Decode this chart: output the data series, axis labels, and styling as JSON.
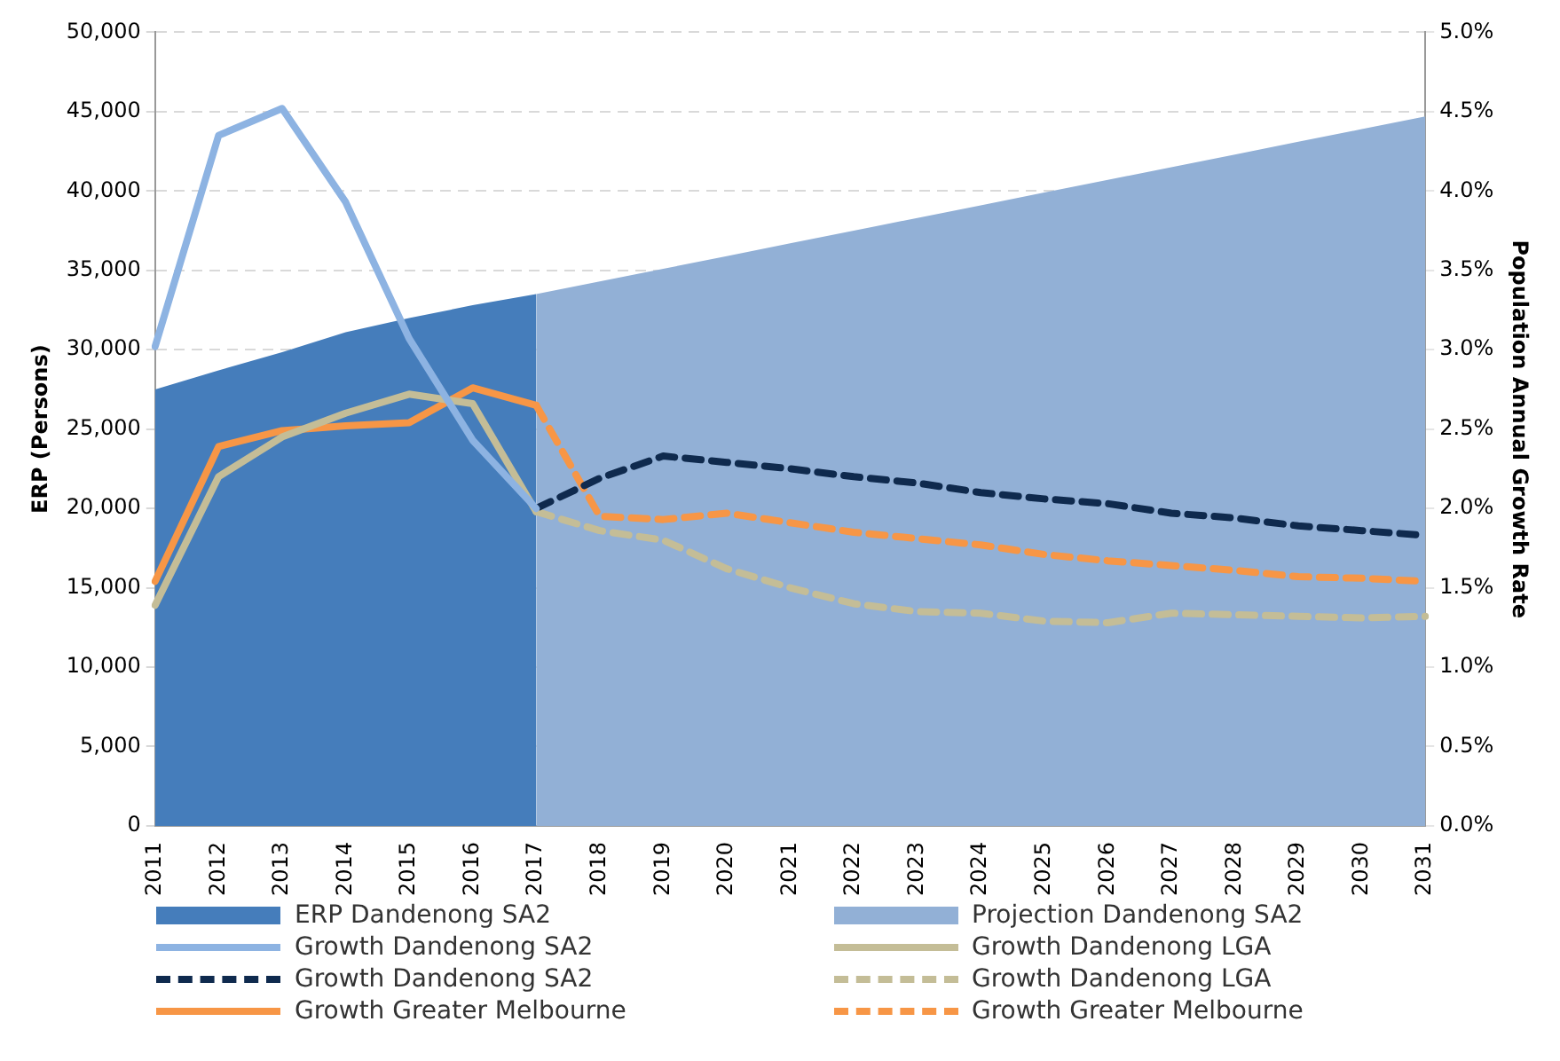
{
  "chart_data": {
    "type": "area",
    "ylabel": "ERP (Persons)",
    "y2label": "Population Annual Growth Rate",
    "categories": [
      "2011",
      "2012",
      "2013",
      "2014",
      "2015",
      "2016",
      "2017",
      "2018",
      "2019",
      "2020",
      "2021",
      "2022",
      "2023",
      "2024",
      "2025",
      "2026",
      "2027",
      "2028",
      "2029",
      "2030",
      "2031"
    ],
    "ylim": [
      0,
      50000
    ],
    "yticks": [
      {
        "value": 0,
        "label": "0"
      },
      {
        "value": 5000,
        "label": "5,000"
      },
      {
        "value": 10000,
        "label": "10,000"
      },
      {
        "value": 15000,
        "label": "15,000"
      },
      {
        "value": 20000,
        "label": "20,000"
      },
      {
        "value": 25000,
        "label": "25,000"
      },
      {
        "value": 30000,
        "label": "30,000"
      },
      {
        "value": 35000,
        "label": "35,000"
      },
      {
        "value": 40000,
        "label": "40,000"
      },
      {
        "value": 45000,
        "label": "45,000"
      },
      {
        "value": 50000,
        "label": "50,000"
      }
    ],
    "y2lim": [
      0,
      5
    ],
    "y2ticks": [
      {
        "value": 0,
        "label": "0.0%"
      },
      {
        "value": 0.5,
        "label": "0.5%"
      },
      {
        "value": 1,
        "label": "1.0%"
      },
      {
        "value": 1.5,
        "label": "1.5%"
      },
      {
        "value": 2,
        "label": "2.0%"
      },
      {
        "value": 2.5,
        "label": "2.5%"
      },
      {
        "value": 3,
        "label": "3.0%"
      },
      {
        "value": 3.5,
        "label": "3.5%"
      },
      {
        "value": 4,
        "label": "4.0%"
      },
      {
        "value": 4.5,
        "label": "4.5%"
      },
      {
        "value": 5,
        "label": "5.0%"
      }
    ],
    "grid": "y",
    "legend": "bottom",
    "series": [
      {
        "name": "ERP Dandenong SA2",
        "type": "area",
        "color": "#457dbb",
        "values": [
          27500,
          28700,
          29850,
          31100,
          32000,
          32800,
          33500,
          null,
          null,
          null,
          null,
          null,
          null,
          null,
          null,
          null,
          null,
          null,
          null,
          null,
          null
        ]
      },
      {
        "name": "Projection Dandenong SA2",
        "type": "area",
        "color": "#92b0d6",
        "values": [
          null,
          null,
          null,
          null,
          null,
          null,
          33500,
          34300,
          35100,
          35900,
          36700,
          37500,
          38300,
          39100,
          39900,
          40700,
          41500,
          42300,
          43100,
          43900,
          44700
        ]
      },
      {
        "name": "Growth Dandenong SA2",
        "type": "line",
        "axis": "y2",
        "line_style": "solid",
        "color": "#8db3e2",
        "values": [
          3.02,
          4.35,
          4.52,
          3.93,
          3.07,
          2.43,
          2.0,
          null,
          null,
          null,
          null,
          null,
          null,
          null,
          null,
          null,
          null,
          null,
          null,
          null,
          null
        ]
      },
      {
        "name": "Growth Dandenong LGA",
        "type": "line",
        "axis": "y2",
        "line_style": "solid",
        "color": "#c4bd97",
        "values": [
          1.39,
          2.2,
          2.45,
          2.6,
          2.72,
          2.66,
          1.98,
          null,
          null,
          null,
          null,
          null,
          null,
          null,
          null,
          null,
          null,
          null,
          null,
          null,
          null
        ]
      },
      {
        "name": "Growth Dandenong SA2",
        "type": "line",
        "axis": "y2",
        "line_style": "dashed",
        "color": "#0f2a4e",
        "values": [
          null,
          null,
          null,
          null,
          null,
          null,
          2.0,
          2.19,
          2.33,
          2.29,
          2.25,
          2.2,
          2.16,
          2.1,
          2.06,
          2.03,
          1.97,
          1.94,
          1.89,
          1.86,
          1.83
        ]
      },
      {
        "name": "Growth Dandenong LGA",
        "type": "line",
        "axis": "y2",
        "line_style": "dashed",
        "color": "#c4bd97",
        "values": [
          null,
          null,
          null,
          null,
          null,
          null,
          1.98,
          1.86,
          1.8,
          1.62,
          1.5,
          1.4,
          1.35,
          1.34,
          1.29,
          1.28,
          1.34,
          1.33,
          1.32,
          1.31,
          1.32
        ]
      },
      {
        "name": "Growth Greater Melbourne",
        "type": "line",
        "axis": "y2",
        "line_style": "solid",
        "color": "#f79646",
        "values": [
          1.54,
          2.39,
          2.49,
          2.52,
          2.54,
          2.76,
          2.65,
          null,
          null,
          null,
          null,
          null,
          null,
          null,
          null,
          null,
          null,
          null,
          null,
          null,
          null
        ]
      },
      {
        "name": "Growth Greater Melbourne",
        "type": "line",
        "axis": "y2",
        "line_style": "dashed",
        "color": "#f79646",
        "values": [
          null,
          null,
          null,
          null,
          null,
          null,
          2.65,
          1.95,
          1.93,
          1.97,
          1.91,
          1.85,
          1.81,
          1.77,
          1.71,
          1.67,
          1.64,
          1.61,
          1.57,
          1.56,
          1.54
        ]
      }
    ]
  }
}
